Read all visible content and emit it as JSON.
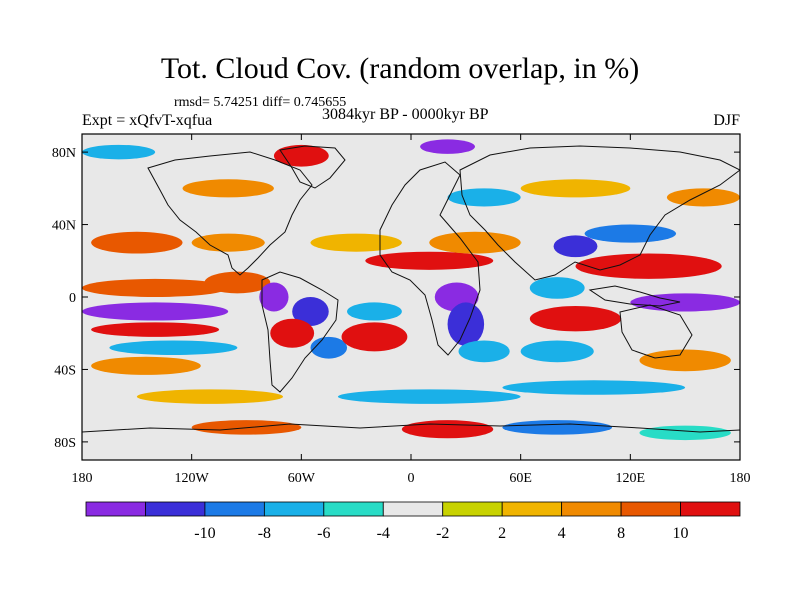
{
  "title": "Tot. Cloud Cov. (random overlap, in %)",
  "stats": "rmsd= 5.74251 diff= 0.745655",
  "experiment": "Expt = xQfvT-xqfua",
  "period": "3084kyr BP - 0000kyr BP",
  "season": "DJF",
  "lat_ticks": [
    {
      "label": "80N",
      "lat": 80
    },
    {
      "label": "40N",
      "lat": 40
    },
    {
      "label": "0",
      "lat": 0
    },
    {
      "label": "40S",
      "lat": -40
    },
    {
      "label": "80S",
      "lat": -80
    }
  ],
  "lon_ticks": [
    {
      "label": "180",
      "lon": -180
    },
    {
      "label": "120W",
      "lon": -120
    },
    {
      "label": "60W",
      "lon": -60
    },
    {
      "label": "0",
      "lon": 0
    },
    {
      "label": "60E",
      "lon": 60
    },
    {
      "label": "120E",
      "lon": 120
    },
    {
      "label": "180",
      "lon": 180
    }
  ],
  "colorbar": {
    "colors": [
      "#8a2be2",
      "#3b2fd8",
      "#1c7ae6",
      "#1ab0e8",
      "#28dcc6",
      "#e8e8e8",
      "#c8d200",
      "#f0b400",
      "#f08a00",
      "#e85800",
      "#e01010"
    ],
    "labels": [
      "-10",
      "-8",
      "-6",
      "-4",
      "-2",
      "2",
      "4",
      "8",
      "10"
    ]
  },
  "anomalies": [
    {
      "lon": -140,
      "lat": 5,
      "rx": 40,
      "ry": 5,
      "level": 9
    },
    {
      "lon": -140,
      "lat": -8,
      "rx": 40,
      "ry": 5,
      "level": 0
    },
    {
      "lon": -95,
      "lat": 8,
      "rx": 18,
      "ry": 6,
      "level": 9
    },
    {
      "lon": -75,
      "lat": 0,
      "rx": 8,
      "ry": 8,
      "level": 0
    },
    {
      "lon": -55,
      "lat": -8,
      "rx": 10,
      "ry": 8,
      "level": 1
    },
    {
      "lon": -65,
      "lat": -20,
      "rx": 12,
      "ry": 8,
      "level": 10
    },
    {
      "lon": -45,
      "lat": -28,
      "rx": 10,
      "ry": 6,
      "level": 2
    },
    {
      "lon": -140,
      "lat": -18,
      "rx": 35,
      "ry": 4,
      "level": 10
    },
    {
      "lon": -130,
      "lat": -28,
      "rx": 35,
      "ry": 4,
      "level": 3
    },
    {
      "lon": -145,
      "lat": -38,
      "rx": 30,
      "ry": 5,
      "level": 8
    },
    {
      "lon": -20,
      "lat": -22,
      "rx": 18,
      "ry": 8,
      "level": 10
    },
    {
      "lon": -20,
      "lat": -8,
      "rx": 15,
      "ry": 5,
      "level": 3
    },
    {
      "lon": 25,
      "lat": 0,
      "rx": 12,
      "ry": 8,
      "level": 0
    },
    {
      "lon": 30,
      "lat": -15,
      "rx": 10,
      "ry": 12,
      "level": 1
    },
    {
      "lon": 40,
      "lat": -30,
      "rx": 14,
      "ry": 6,
      "level": 3
    },
    {
      "lon": 10,
      "lat": 20,
      "rx": 35,
      "ry": 5,
      "level": 10
    },
    {
      "lon": 35,
      "lat": 30,
      "rx": 25,
      "ry": 6,
      "level": 8
    },
    {
      "lon": -30,
      "lat": 30,
      "rx": 25,
      "ry": 5,
      "level": 7
    },
    {
      "lon": -150,
      "lat": 30,
      "rx": 25,
      "ry": 6,
      "level": 9
    },
    {
      "lon": -100,
      "lat": 30,
      "rx": 20,
      "ry": 5,
      "level": 8
    },
    {
      "lon": 130,
      "lat": 17,
      "rx": 40,
      "ry": 7,
      "level": 10
    },
    {
      "lon": 120,
      "lat": 35,
      "rx": 25,
      "ry": 5,
      "level": 2
    },
    {
      "lon": 90,
      "lat": 28,
      "rx": 12,
      "ry": 6,
      "level": 1
    },
    {
      "lon": 150,
      "lat": -3,
      "rx": 30,
      "ry": 5,
      "level": 0
    },
    {
      "lon": 90,
      "lat": -12,
      "rx": 25,
      "ry": 7,
      "level": 10
    },
    {
      "lon": 80,
      "lat": -30,
      "rx": 20,
      "ry": 6,
      "level": 3
    },
    {
      "lon": 150,
      "lat": -35,
      "rx": 25,
      "ry": 6,
      "level": 8
    },
    {
      "lon": 80,
      "lat": 5,
      "rx": 15,
      "ry": 6,
      "level": 3
    },
    {
      "lon": 10,
      "lat": -55,
      "rx": 50,
      "ry": 4,
      "level": 3
    },
    {
      "lon": -110,
      "lat": -55,
      "rx": 40,
      "ry": 4,
      "level": 7
    },
    {
      "lon": 100,
      "lat": -50,
      "rx": 50,
      "ry": 4,
      "level": 3
    },
    {
      "lon": 20,
      "lat": -73,
      "rx": 25,
      "ry": 5,
      "level": 10
    },
    {
      "lon": 80,
      "lat": -72,
      "rx": 30,
      "ry": 4,
      "level": 2
    },
    {
      "lon": -90,
      "lat": -72,
      "rx": 30,
      "ry": 4,
      "level": 9
    },
    {
      "lon": 150,
      "lat": -75,
      "rx": 25,
      "ry": 4,
      "level": 4
    },
    {
      "lon": -60,
      "lat": 78,
      "rx": 15,
      "ry": 6,
      "level": 10
    },
    {
      "lon": 20,
      "lat": 83,
      "rx": 15,
      "ry": 4,
      "level": 0
    },
    {
      "lon": -160,
      "lat": 80,
      "rx": 20,
      "ry": 4,
      "level": 3
    },
    {
      "lon": 90,
      "lat": 60,
      "rx": 30,
      "ry": 5,
      "level": 7
    },
    {
      "lon": -100,
      "lat": 60,
      "rx": 25,
      "ry": 5,
      "level": 8
    },
    {
      "lon": 40,
      "lat": 55,
      "rx": 20,
      "ry": 5,
      "level": 3
    },
    {
      "lon": 160,
      "lat": 55,
      "rx": 20,
      "ry": 5,
      "level": 8
    }
  ]
}
